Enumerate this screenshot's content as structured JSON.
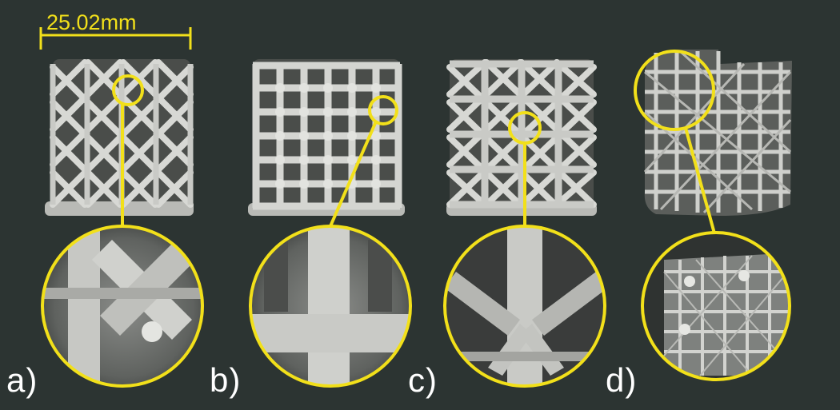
{
  "figure": {
    "scale_bar_label": "25.02mm",
    "highlight_color": "#f2e01a",
    "background_color": "#2c3432",
    "panels": [
      {
        "label": "a)",
        "lattice": "diamond-x"
      },
      {
        "label": "b)",
        "lattice": "cubic-grid"
      },
      {
        "label": "c)",
        "lattice": "diamond-x"
      },
      {
        "label": "d)",
        "lattice": "complex-star"
      }
    ]
  }
}
